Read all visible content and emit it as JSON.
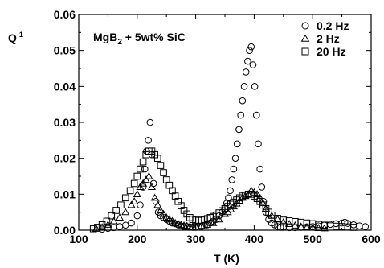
{
  "chart_data": {
    "type": "scatter",
    "title": "",
    "xlabel": "T (K)",
    "ylabel_main": "Q",
    "ylabel_sup": "-1",
    "xlim": [
      100,
      600
    ],
    "ylim": [
      0.0,
      0.06
    ],
    "x_ticks": [
      "100",
      "200",
      "300",
      "400",
      "500",
      "600"
    ],
    "y_ticks": [
      "0.00",
      "0.01",
      "0.02",
      "0.03",
      "0.04",
      "0.05",
      "0.06"
    ],
    "annotation": {
      "main": "MgB",
      "sub": "2",
      "rest": " + 5wt% SiC"
    },
    "legend_position": "top-right",
    "grid": false,
    "series": [
      {
        "name": "0.2 Hz",
        "marker": "circle",
        "x": [
          140,
          150,
          160,
          170,
          180,
          190,
          200,
          205,
          210,
          213,
          216,
          219,
          222,
          225,
          228,
          232,
          236,
          240,
          245,
          250,
          255,
          260,
          265,
          270,
          275,
          280,
          285,
          290,
          295,
          300,
          305,
          310,
          315,
          320,
          325,
          330,
          335,
          340,
          345,
          350,
          353,
          356,
          359,
          362,
          365,
          368,
          371,
          374,
          377,
          380,
          383,
          386,
          389,
          392,
          395,
          398,
          401,
          404,
          407,
          410,
          413,
          416,
          420,
          425,
          430,
          435,
          440,
          445,
          450,
          460,
          470,
          480,
          490,
          500,
          510,
          520,
          530,
          540,
          550,
          555,
          560,
          570,
          580,
          590
        ],
        "y": [
          0.0003,
          0.0005,
          0.0007,
          0.001,
          0.0014,
          0.002,
          0.004,
          0.007,
          0.012,
          0.017,
          0.022,
          0.025,
          0.03,
          0.021,
          0.013,
          0.008,
          0.005,
          0.004,
          0.0035,
          0.003,
          0.0025,
          0.002,
          0.0018,
          0.0015,
          0.0012,
          0.001,
          0.001,
          0.0009,
          0.0008,
          0.0008,
          0.0009,
          0.001,
          0.0012,
          0.0015,
          0.002,
          0.0025,
          0.003,
          0.004,
          0.005,
          0.006,
          0.0075,
          0.009,
          0.011,
          0.014,
          0.017,
          0.02,
          0.024,
          0.028,
          0.032,
          0.036,
          0.04,
          0.044,
          0.047,
          0.05,
          0.051,
          0.046,
          0.04,
          0.032,
          0.024,
          0.017,
          0.012,
          0.008,
          0.005,
          0.003,
          0.002,
          0.0015,
          0.001,
          0.0008,
          0.0008,
          0.0007,
          0.0007,
          0.0008,
          0.0009,
          0.001,
          0.0012,
          0.0014,
          0.0016,
          0.0018,
          0.002,
          0.0022,
          0.0019,
          0.0015,
          0.0012,
          0.001
        ]
      },
      {
        "name": "2 Hz",
        "marker": "triangle",
        "x": [
          130,
          140,
          150,
          160,
          170,
          180,
          190,
          195,
          200,
          205,
          210,
          215,
          220,
          225,
          230,
          235,
          240,
          245,
          250,
          255,
          260,
          265,
          270,
          275,
          280,
          285,
          290,
          295,
          300,
          310,
          320,
          330,
          340,
          350,
          355,
          360,
          365,
          370,
          375,
          380,
          385,
          390,
          395,
          400,
          405,
          410,
          415,
          420,
          430,
          440,
          450,
          460,
          470,
          480,
          490,
          500,
          510,
          520
        ],
        "y": [
          0.0004,
          0.0008,
          0.0015,
          0.0025,
          0.0035,
          0.005,
          0.007,
          0.008,
          0.01,
          0.012,
          0.013,
          0.014,
          0.015,
          0.012,
          0.009,
          0.007,
          0.0055,
          0.0045,
          0.0035,
          0.003,
          0.0025,
          0.002,
          0.0018,
          0.0015,
          0.0013,
          0.0012,
          0.001,
          0.001,
          0.001,
          0.0012,
          0.0015,
          0.002,
          0.003,
          0.0045,
          0.005,
          0.0058,
          0.0066,
          0.0074,
          0.0082,
          0.009,
          0.0095,
          0.01,
          0.011,
          0.0105,
          0.01,
          0.009,
          0.0075,
          0.006,
          0.004,
          0.003,
          0.0022,
          0.0017,
          0.0013,
          0.001,
          0.0008,
          0.0007,
          0.0006,
          0.0005
        ]
      },
      {
        "name": "20 Hz",
        "marker": "square",
        "x": [
          125,
          132,
          140,
          148,
          156,
          164,
          172,
          180,
          188,
          195,
          200,
          205,
          210,
          215,
          220,
          225,
          230,
          235,
          240,
          245,
          250,
          255,
          260,
          265,
          270,
          275,
          280,
          285,
          290,
          295,
          300,
          305,
          310,
          315,
          320,
          325,
          330,
          335,
          340,
          345,
          350,
          355,
          360,
          365,
          370,
          375,
          380,
          385,
          390,
          395,
          400,
          405,
          410,
          415,
          420,
          425,
          430,
          440,
          450,
          460,
          470,
          480,
          490,
          500,
          510,
          520,
          530,
          540,
          550,
          560,
          570
        ],
        "y": [
          0.0004,
          0.0008,
          0.0015,
          0.0025,
          0.004,
          0.0055,
          0.007,
          0.009,
          0.011,
          0.013,
          0.015,
          0.017,
          0.019,
          0.021,
          0.022,
          0.022,
          0.021,
          0.02,
          0.018,
          0.016,
          0.014,
          0.0125,
          0.011,
          0.0095,
          0.008,
          0.0068,
          0.0055,
          0.0045,
          0.0035,
          0.003,
          0.0028,
          0.0027,
          0.0028,
          0.003,
          0.0032,
          0.0035,
          0.0038,
          0.0042,
          0.0048,
          0.0054,
          0.006,
          0.0066,
          0.0072,
          0.0078,
          0.0084,
          0.009,
          0.0095,
          0.0098,
          0.01,
          0.01,
          0.0095,
          0.0088,
          0.008,
          0.007,
          0.006,
          0.005,
          0.0042,
          0.0033,
          0.0028,
          0.0026,
          0.0024,
          0.0022,
          0.002,
          0.0018,
          0.0016,
          0.0014,
          0.0012,
          0.0011,
          0.001,
          0.0009,
          0.0008
        ]
      }
    ]
  }
}
